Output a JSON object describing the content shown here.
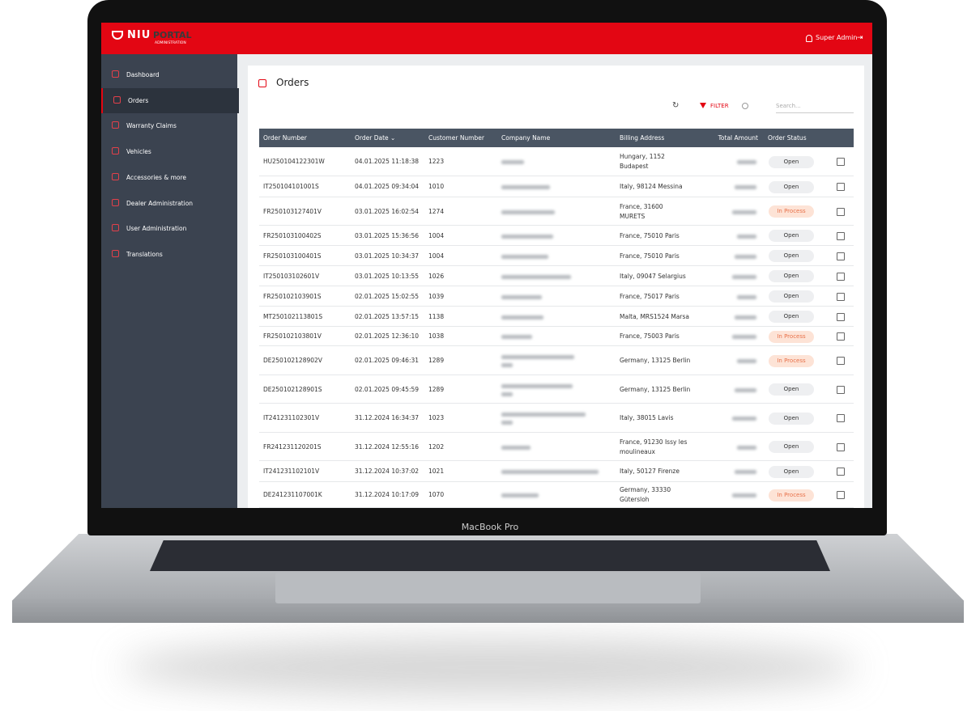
{
  "device_label": "MacBook Pro",
  "header": {
    "logo_brand": "NIU",
    "logo_portal": "PORTAL",
    "logo_sub": "ADMINISTRATION",
    "user": "Super Admin"
  },
  "sidebar": {
    "items": [
      "Dashboard",
      "Orders",
      "Warranty Claims",
      "Vehicles",
      "Accessories & more",
      "Dealer Administration",
      "User Administration",
      "Translations"
    ]
  },
  "page": {
    "title": "Orders",
    "filter": "FILTER",
    "search_placeholder": "Search..."
  },
  "table": {
    "headers": [
      "Order Number",
      "Order Date",
      "Customer Number",
      "Company Name",
      "Billing Address",
      "Total Amount",
      "Order Status"
    ],
    "rows": [
      {
        "order": "HU250104122301W",
        "date": "04.01.2025 11:18:38",
        "customer": "1223",
        "billing": [
          "Hungary, 1152",
          "Budapest"
        ],
        "status": "Open"
      },
      {
        "order": "IT250104101001S",
        "date": "04.01.2025 09:34:04",
        "customer": "1010",
        "billing": [
          "Italy, 98124 Messina"
        ],
        "status": "Open"
      },
      {
        "order": "FR250103127401V",
        "date": "03.01.2025 16:02:54",
        "customer": "1274",
        "billing": [
          "France, 31600",
          "MURETS"
        ],
        "status": "In Process"
      },
      {
        "order": "FR250103100402S",
        "date": "03.01.2025 15:36:56",
        "customer": "1004",
        "billing": [
          "France, 75010 Paris"
        ],
        "status": "Open"
      },
      {
        "order": "FR250103100401S",
        "date": "03.01.2025 10:34:37",
        "customer": "1004",
        "billing": [
          "France, 75010 Paris"
        ],
        "status": "Open"
      },
      {
        "order": "IT250103102601V",
        "date": "03.01.2025 10:13:55",
        "customer": "1026",
        "billing": [
          "Italy, 09047 Selargius"
        ],
        "status": "Open"
      },
      {
        "order": "FR250102103901S",
        "date": "02.01.2025 15:02:55",
        "customer": "1039",
        "billing": [
          "France, 75017 Paris"
        ],
        "status": "Open"
      },
      {
        "order": "MT250102113801S",
        "date": "02.01.2025 13:57:15",
        "customer": "1138",
        "billing": [
          "Malta, MRS1524 Marsa"
        ],
        "status": "Open"
      },
      {
        "order": "FR250102103801V",
        "date": "02.01.2025 12:36:10",
        "customer": "1038",
        "billing": [
          "France, 75003 Paris"
        ],
        "status": "In Process"
      },
      {
        "order": "DE250102128902V",
        "date": "02.01.2025 09:46:31",
        "customer": "1289",
        "billing": [
          "Germany, 13125 Berlin"
        ],
        "status": "In Process"
      },
      {
        "order": "DE250102128901S",
        "date": "02.01.2025 09:45:59",
        "customer": "1289",
        "billing": [
          "Germany, 13125 Berlin"
        ],
        "status": "Open"
      },
      {
        "order": "IT241231102301V",
        "date": "31.12.2024 16:34:37",
        "customer": "1023",
        "billing": [
          "Italy, 38015 Lavis"
        ],
        "status": "Open"
      },
      {
        "order": "FR241231120201S",
        "date": "31.12.2024 12:55:16",
        "customer": "1202",
        "billing": [
          "France, 91230 Issy les",
          "moulineaux"
        ],
        "status": "Open"
      },
      {
        "order": "IT241231102101V",
        "date": "31.12.2024 10:37:02",
        "customer": "1021",
        "billing": [
          "Italy, 50127 Firenze"
        ],
        "status": "Open"
      },
      {
        "order": "DE241231107001K",
        "date": "31.12.2024 10:17:09",
        "customer": "1070",
        "billing": [
          "Germany, 33330",
          "Gütersloh"
        ],
        "status": "In Process"
      }
    ]
  }
}
